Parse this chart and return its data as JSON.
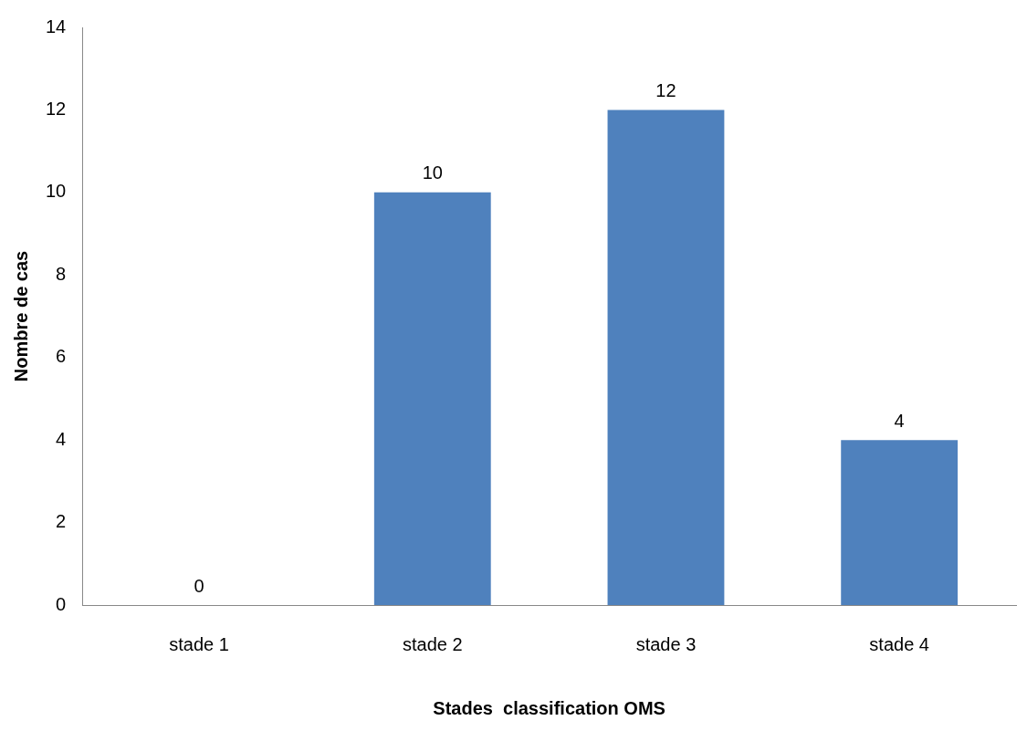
{
  "chart_data": {
    "type": "bar",
    "xlabel": "Stades  classification OMS",
    "ylabel": "Nombre de cas",
    "categories": [
      "stade 1",
      "stade 2",
      "stade 3",
      "stade 4"
    ],
    "values": [
      0,
      10,
      12,
      4
    ],
    "color": "#4f81bd",
    "ylim": [
      0,
      14
    ],
    "yticks": [
      0,
      2,
      4,
      6,
      8,
      10,
      12,
      14
    ],
    "grid": false,
    "legend": false,
    "data_labels": true
  }
}
